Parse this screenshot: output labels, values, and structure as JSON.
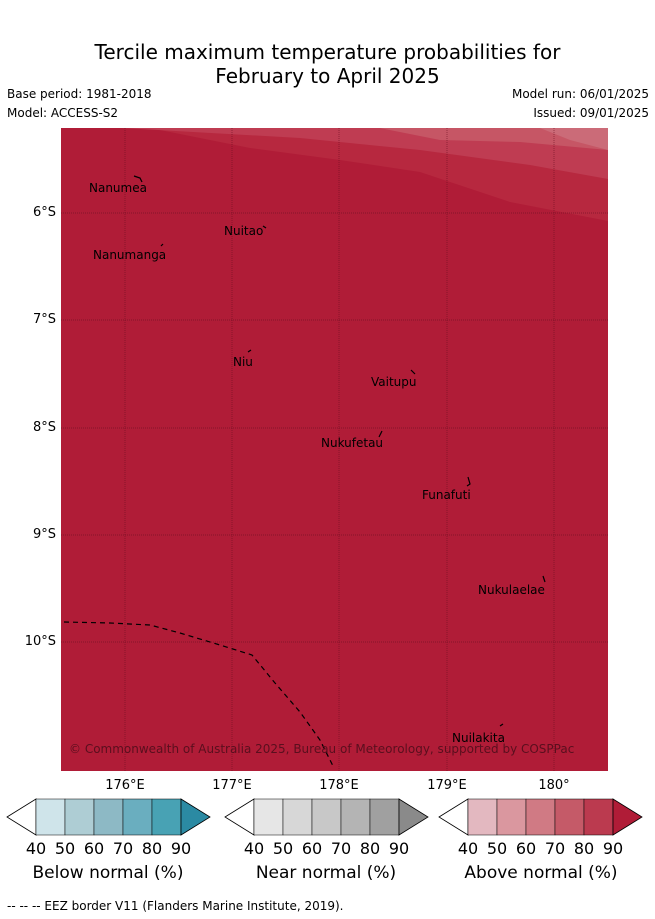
{
  "title": {
    "line1": "Tercile maximum temperature probabilities for",
    "line2": "February to April 2025"
  },
  "meta": {
    "base_period": "Base period: 1981-2018",
    "model": "Model: ACCESS-S2",
    "model_run": "Model run: 06/01/2025",
    "issued": "Issued: 09/01/2025"
  },
  "map": {
    "lat_labels": [
      "6°S",
      "7°S",
      "8°S",
      "9°S",
      "10°S"
    ],
    "lon_labels": [
      "176°E",
      "177°E",
      "178°E",
      "179°E",
      "180°"
    ],
    "islands": {
      "nanumea": "Nanumea",
      "nuitao": "Nuitao",
      "nanumanga": "Nanumanga",
      "niu": "Niu",
      "vaitupu": "Vaitupu",
      "nukufetau": "Nukufetau",
      "funafuti": "Funafuti",
      "nukulaelae": "Nukulaelae",
      "nuilakita": "Nuilakita"
    },
    "copyright": "© Commonwealth of Australia 2025, Bureau of Meteorology, supported by COSPPac",
    "fill_color": "#b01c37"
  },
  "colorbars": {
    "ticks": [
      "40",
      "50",
      "60",
      "70",
      "80",
      "90"
    ],
    "below": {
      "title": "Below normal (%)",
      "colors": [
        "#ffffff",
        "#cfe4ea",
        "#aecdd4",
        "#8db9c5",
        "#6aaebf",
        "#48a2b4",
        "#2b8aa3"
      ]
    },
    "near": {
      "title": "Near normal (%)",
      "colors": [
        "#ffffff",
        "#e6e6e6",
        "#d7d7d7",
        "#c8c8c8",
        "#b4b4b4",
        "#a0a0a0",
        "#8a8a8a"
      ]
    },
    "above": {
      "title": "Above normal (%)",
      "colors": [
        "#ffffff",
        "#e3b8c0",
        "#da979f",
        "#d07a84",
        "#c55a68",
        "#bb3a4f",
        "#b01c37"
      ]
    }
  },
  "footer": "--  --  -- EEZ border V11 (Flanders Marine Institute, 2019)."
}
